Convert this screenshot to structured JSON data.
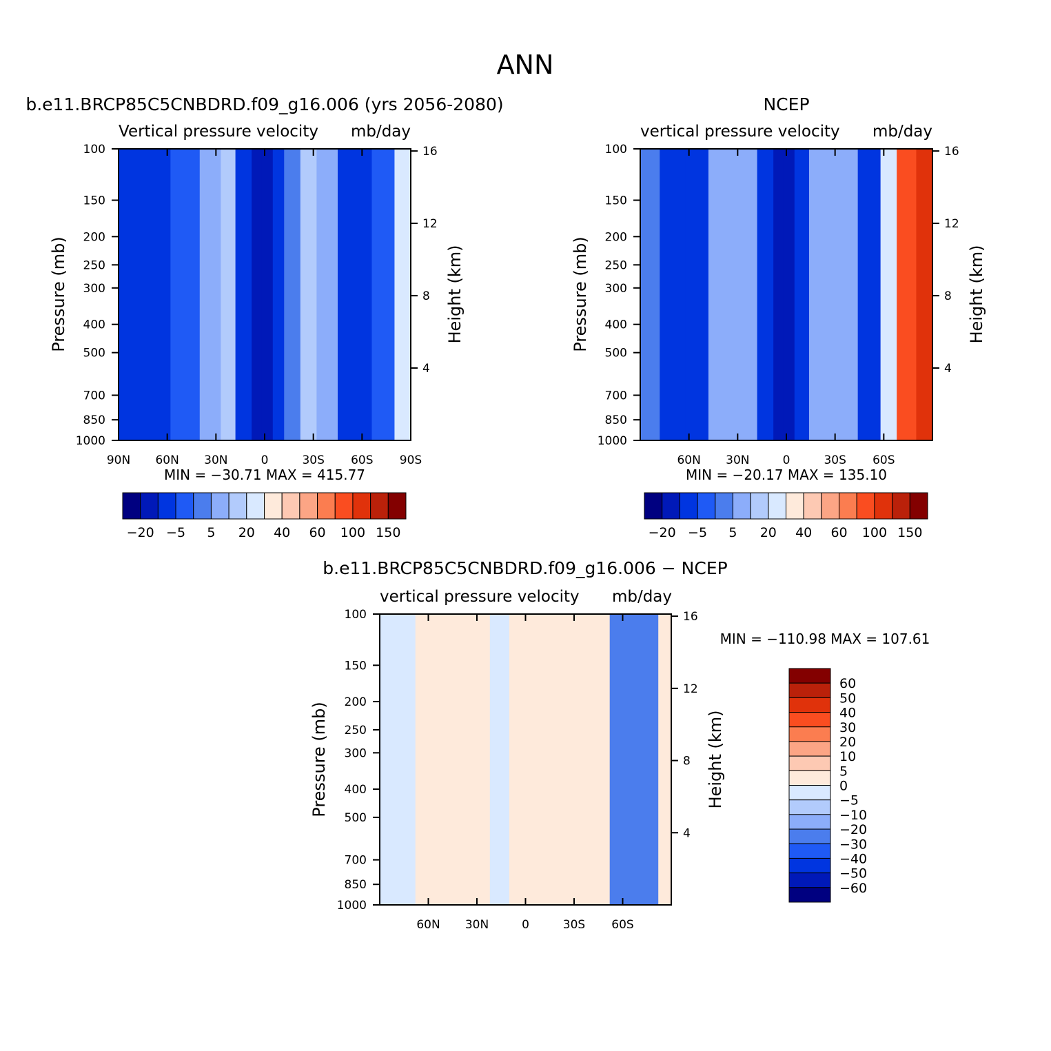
{
  "figure": {
    "title": "ANN"
  },
  "colors": {
    "main_scale": [
      "#000080",
      "#0019b8",
      "#0035e0",
      "#1f5af5",
      "#4b7ded",
      "#8cadfa",
      "#b2cbfc",
      "#d9e9ff",
      "#feeadb",
      "#fdc9b3",
      "#fca585",
      "#fb7d50",
      "#fa4d20",
      "#e0320b",
      "#ba210a",
      "#830000"
    ],
    "diff_scale": [
      "#000080",
      "#0019b8",
      "#0035e0",
      "#1f5af5",
      "#4b7ded",
      "#8cadfa",
      "#b2cbfc",
      "#d9e9ff",
      "#feeadb",
      "#fdc9b3",
      "#fca585",
      "#fb7d50",
      "#fa4d20",
      "#e0320b",
      "#ba210a",
      "#830000"
    ]
  },
  "chart_data": [
    {
      "type": "heatmap",
      "title": "b.e11.BRCP85C5CNBDRD.f09_g16.006 (yrs 2056-2080)",
      "subtitle_left": "Vertical pressure velocity",
      "subtitle_right": "mb/day",
      "ylabel": "Pressure (mb)",
      "ylabel_right": "Height (km)",
      "xlabel": "",
      "x_ticks": [
        "90N",
        "60N",
        "30N",
        "0",
        "30S",
        "60S",
        "90S"
      ],
      "x_tick_values": [
        90,
        60,
        30,
        0,
        -30,
        -60,
        -90
      ],
      "xlim": [
        90,
        -90
      ],
      "y_ticks": [
        "100",
        "150",
        "200",
        "250",
        "300",
        "400",
        "500",
        "700",
        "850",
        "1000"
      ],
      "y_tick_values": [
        100,
        150,
        200,
        250,
        300,
        400,
        500,
        700,
        850,
        1000
      ],
      "ylim": [
        1000,
        100
      ],
      "y_scale": "log",
      "right_ticks": [
        "16",
        "12",
        "8",
        "4"
      ],
      "right_tick_values": [
        16,
        12,
        8,
        4
      ],
      "stats": "MIN = −30.71   MAX = 415.77",
      "colorbar_labels": [
        "−20",
        "−5",
        "5",
        "20",
        "40",
        "60",
        "100",
        "150"
      ],
      "colorbar_levels": [
        -30,
        -20,
        -10,
        -5,
        0,
        5,
        10,
        20,
        30,
        40,
        50,
        60,
        80,
        100,
        150
      ],
      "bands": [
        {
          "lat": 90,
          "v": -10
        },
        {
          "lat": 75,
          "v": -20
        },
        {
          "lat": 58,
          "v": -10
        },
        {
          "lat": 40,
          "v": -5
        },
        {
          "lat": 27,
          "v": 10
        },
        {
          "lat": 18,
          "v": 5
        },
        {
          "lat": 8,
          "v": -30
        },
        {
          "lat": 2,
          "v": -20
        },
        {
          "lat": -5,
          "v": -30
        },
        {
          "lat": -12,
          "v": -10
        },
        {
          "lat": -22,
          "v": 5
        },
        {
          "lat": -32,
          "v": 10
        },
        {
          "lat": -45,
          "v": -5
        },
        {
          "lat": -58,
          "v": -30
        },
        {
          "lat": -66,
          "v": -10
        },
        {
          "lat": -80,
          "v": -5
        },
        {
          "lat": -90,
          "v": 40
        }
      ]
    },
    {
      "type": "heatmap",
      "title": "NCEP",
      "subtitle_left": "vertical pressure velocity",
      "subtitle_right": "mb/day",
      "ylabel": "Pressure (mb)",
      "ylabel_right": "Height (km)",
      "xlabel": "",
      "x_ticks": [
        "60N",
        "30N",
        "0",
        "30S",
        "60S"
      ],
      "x_tick_values": [
        60,
        30,
        0,
        -30,
        -60
      ],
      "xlim": [
        90,
        -90
      ],
      "y_ticks": [
        "100",
        "150",
        "200",
        "250",
        "300",
        "400",
        "500",
        "700",
        "850",
        "1000"
      ],
      "y_tick_values": [
        100,
        150,
        200,
        250,
        300,
        400,
        500,
        700,
        850,
        1000
      ],
      "ylim": [
        1000,
        100
      ],
      "y_scale": "log",
      "right_ticks": [
        "16",
        "12",
        "8",
        "4"
      ],
      "right_tick_values": [
        16,
        12,
        8,
        4
      ],
      "stats": "MIN = −20.17   MAX = 135.10",
      "colorbar_labels": [
        "−20",
        "−5",
        "5",
        "20",
        "40",
        "60",
        "100",
        "150"
      ],
      "colorbar_levels": [
        -30,
        -20,
        -10,
        -5,
        0,
        5,
        10,
        20,
        30,
        40,
        50,
        60,
        80,
        100,
        150
      ],
      "bands": [
        {
          "lat": 90,
          "v": 0
        },
        {
          "lat": 78,
          "v": -10
        },
        {
          "lat": 62,
          "v": -20
        },
        {
          "lat": 48,
          "v": -10
        },
        {
          "lat": 30,
          "v": 10
        },
        {
          "lat": 18,
          "v": -10
        },
        {
          "lat": 8,
          "v": -30
        },
        {
          "lat": 2,
          "v": -20
        },
        {
          "lat": -5,
          "v": -30
        },
        {
          "lat": -14,
          "v": -10
        },
        {
          "lat": -30,
          "v": 10
        },
        {
          "lat": -44,
          "v": -5
        },
        {
          "lat": -58,
          "v": -20
        },
        {
          "lat": -68,
          "v": 40
        },
        {
          "lat": -80,
          "v": 100
        },
        {
          "lat": -90,
          "v": 60
        }
      ]
    },
    {
      "type": "heatmap",
      "title": "b.e11.BRCP85C5CNBDRD.f09_g16.006 − NCEP",
      "subtitle_left": "vertical pressure velocity",
      "subtitle_right": "mb/day",
      "ylabel": "Pressure (mb)",
      "ylabel_right": "Height (km)",
      "xlabel": "",
      "x_ticks": [
        "60N",
        "30N",
        "0",
        "30S",
        "60S"
      ],
      "x_tick_values": [
        60,
        30,
        0,
        -30,
        -60
      ],
      "xlim": [
        90,
        -90
      ],
      "y_ticks": [
        "100",
        "150",
        "200",
        "250",
        "300",
        "400",
        "500",
        "700",
        "850",
        "1000"
      ],
      "y_tick_values": [
        100,
        150,
        200,
        250,
        300,
        400,
        500,
        700,
        850,
        1000
      ],
      "ylim": [
        1000,
        100
      ],
      "y_scale": "log",
      "right_ticks": [
        "16",
        "12",
        "8",
        "4"
      ],
      "right_tick_values": [
        16,
        12,
        8,
        4
      ],
      "stats": "MIN = −110.98   MAX = 107.61",
      "colorbar_labels": [
        "60",
        "50",
        "40",
        "30",
        "20",
        "10",
        "5",
        "0",
        "−5",
        "−10",
        "−20",
        "−30",
        "−40",
        "−50",
        "−60"
      ],
      "colorbar_levels": [
        60,
        50,
        40,
        30,
        20,
        10,
        5,
        0,
        -5,
        -10,
        -20,
        -30,
        -40,
        -50,
        -60
      ],
      "bands": [
        {
          "lat": 90,
          "v": -2
        },
        {
          "lat": 78,
          "v": -8
        },
        {
          "lat": 68,
          "v": -2
        },
        {
          "lat": 62,
          "v": 2
        },
        {
          "lat": 55,
          "v": -2
        },
        {
          "lat": 30,
          "v": 2
        },
        {
          "lat": 22,
          "v": -2
        },
        {
          "lat": 10,
          "v": -2
        },
        {
          "lat": -10,
          "v": 2
        },
        {
          "lat": -20,
          "v": -2
        },
        {
          "lat": -40,
          "v": 2
        },
        {
          "lat": -52,
          "v": -2
        },
        {
          "lat": -72,
          "v": -50
        },
        {
          "lat": -82,
          "v": 2
        },
        {
          "lat": -90,
          "v": 2
        }
      ]
    }
  ]
}
